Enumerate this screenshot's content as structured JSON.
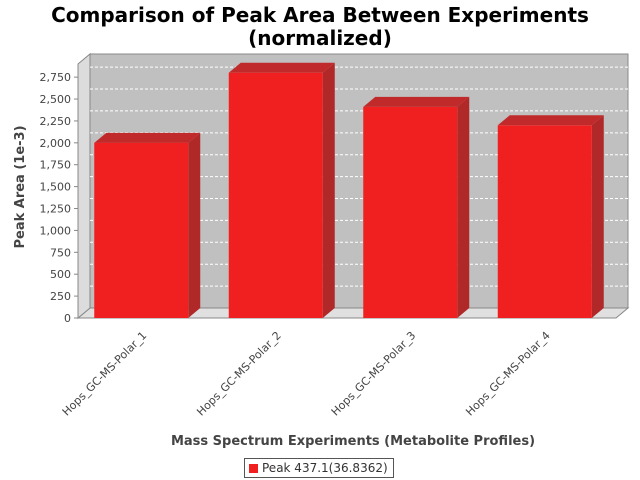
{
  "chart_data": {
    "type": "bar",
    "title": [
      "Comparison of Peak Area Between Experiments",
      "(normalized)"
    ],
    "xlabel": "Mass Spectrum Experiments (Metabolite Profiles)",
    "ylabel": "Peak Area (1e-3)",
    "categories": [
      "Hops_GC-MS-Polar_1",
      "Hops_GC-MS-Polar_2",
      "Hops_GC-MS-Polar_3",
      "Hops_GC-MS-Polar_4"
    ],
    "series": [
      {
        "name": "Peak 437.1(36.8362)",
        "values": [
          2000,
          2800,
          2410,
          2200
        ],
        "color": "#f02020"
      }
    ],
    "yticks": [
      0,
      250,
      500,
      750,
      1000,
      1250,
      1500,
      1750,
      2000,
      2250,
      2500,
      2750
    ],
    "ytick_labels": [
      "0",
      "250",
      "500",
      "750",
      "1,000",
      "1,250",
      "1,500",
      "1,750",
      "2,000",
      "2,250",
      "2,500",
      "2,750"
    ],
    "ylim": [
      0,
      2900
    ],
    "grid": true,
    "legend_position": "bottom",
    "plot_background": "#c0c0c0"
  }
}
